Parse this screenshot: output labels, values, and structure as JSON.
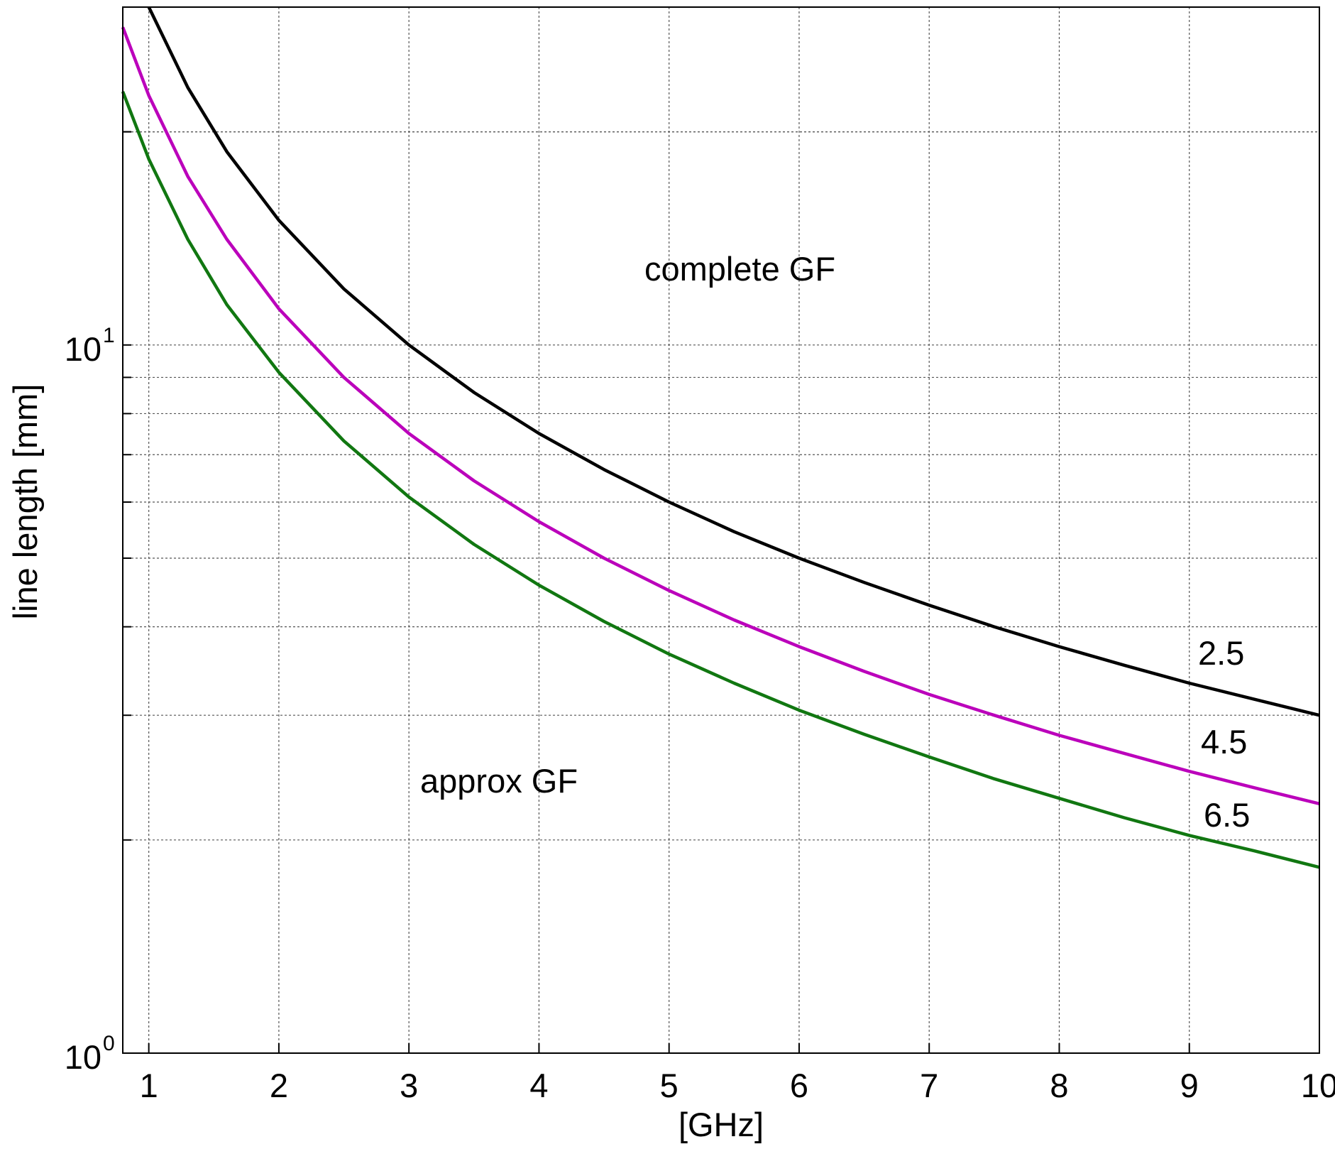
{
  "chart_data": {
    "type": "line",
    "xlabel": "[GHz]",
    "ylabel": "line length [mm]",
    "xlim": [
      0.8,
      10
    ],
    "ylim": [
      1,
      30
    ],
    "yscale": "log",
    "grid": true,
    "x_ticks": [
      "1",
      "2",
      "3",
      "4",
      "5",
      "6",
      "7",
      "8",
      "9",
      "10"
    ],
    "y_ticks": [
      {
        "base": "10",
        "exp": "0"
      },
      {
        "base": "10",
        "exp": "1"
      }
    ],
    "annotations": {
      "complete": "complete GF",
      "approx": "approx GF"
    },
    "series": [
      {
        "name": "2.5",
        "color": "#000000",
        "x": [
          1.0,
          1.3,
          1.6,
          2.0,
          2.5,
          3.0,
          3.5,
          4.0,
          4.5,
          5.0,
          5.5,
          6.0,
          6.5,
          7.0,
          7.5,
          8.0,
          8.5,
          9.0,
          9.5,
          10.0
        ],
        "y": [
          30.0,
          23.1,
          18.75,
          15.0,
          12.0,
          10.0,
          8.57,
          7.5,
          6.67,
          6.0,
          5.45,
          5.0,
          4.62,
          4.29,
          4.0,
          3.75,
          3.53,
          3.33,
          3.16,
          3.0
        ]
      },
      {
        "name": "4.5",
        "color": "#bb00bb",
        "x": [
          0.8,
          1.0,
          1.3,
          1.6,
          2.0,
          2.5,
          3.0,
          3.5,
          4.0,
          4.5,
          5.0,
          5.5,
          6.0,
          6.5,
          7.0,
          7.5,
          8.0,
          8.5,
          9.0,
          9.5,
          10.0
        ],
        "y": [
          28.1,
          22.5,
          17.3,
          14.1,
          11.25,
          9.0,
          7.5,
          6.43,
          5.63,
          5.0,
          4.5,
          4.09,
          3.75,
          3.46,
          3.21,
          3.0,
          2.81,
          2.65,
          2.5,
          2.37,
          2.25
        ]
      },
      {
        "name": "6.5",
        "color": "#117711",
        "x": [
          0.8,
          1.0,
          1.3,
          1.6,
          2.0,
          2.5,
          3.0,
          3.5,
          4.0,
          4.5,
          5.0,
          5.5,
          6.0,
          6.5,
          7.0,
          7.5,
          8.0,
          8.5,
          9.0,
          9.5,
          10.0
        ],
        "y": [
          22.8,
          18.3,
          14.1,
          11.4,
          9.15,
          7.32,
          6.1,
          5.23,
          4.58,
          4.07,
          3.66,
          3.33,
          3.05,
          2.82,
          2.62,
          2.44,
          2.29,
          2.15,
          2.03,
          1.93,
          1.83
        ]
      }
    ]
  }
}
